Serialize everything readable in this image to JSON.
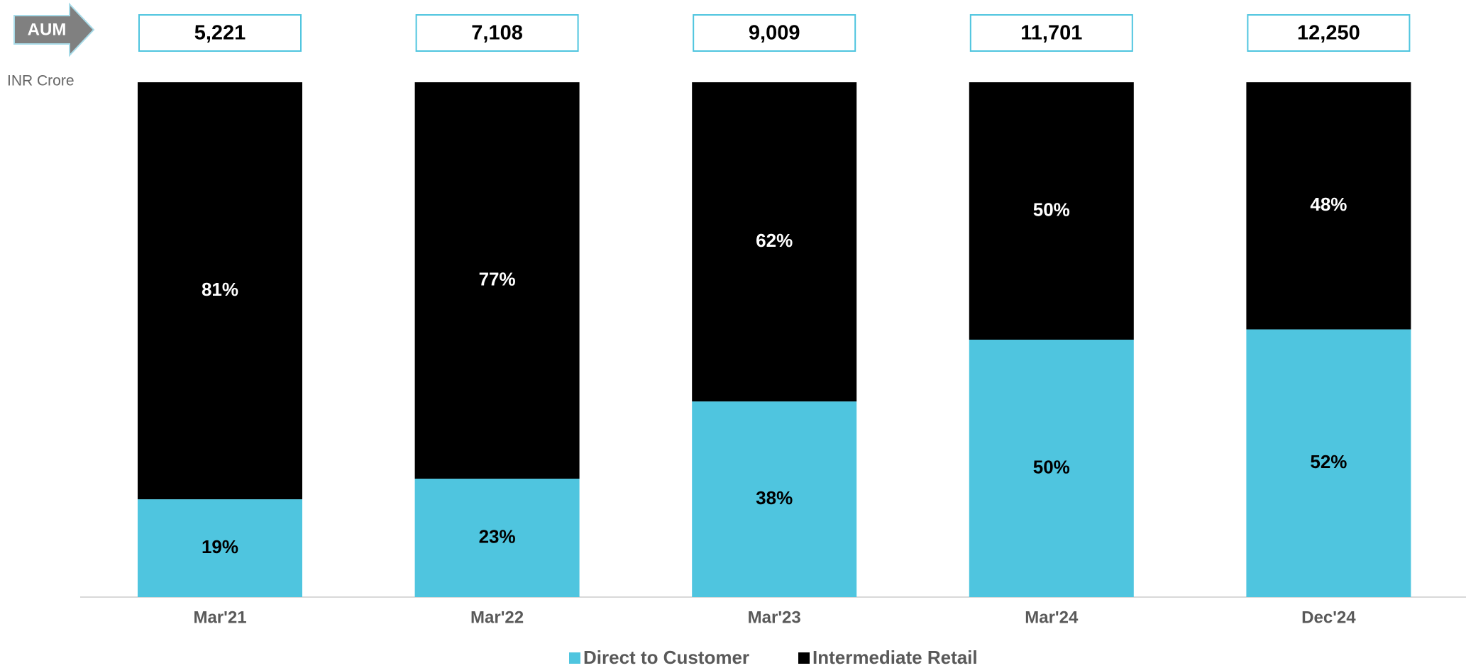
{
  "chart_data": {
    "type": "stacked_bar",
    "unit_label": "INR Crore",
    "categories": [
      "Mar'21",
      "Mar'22",
      "Mar'23",
      "Mar'24",
      "Dec'24"
    ],
    "series": [
      {
        "name": "Direct to Customer",
        "color": "#4fc5df",
        "values": [
          19,
          23,
          38,
          50,
          52
        ],
        "value_labels": [
          "19%",
          "23%",
          "38%",
          "50%",
          "52%"
        ]
      },
      {
        "name": "Intermediate Retail",
        "color": "#000000",
        "values": [
          81,
          77,
          62,
          50,
          48
        ],
        "value_labels": [
          "81%",
          "77%",
          "62%",
          "50%",
          "48%"
        ]
      }
    ],
    "ylim": [
      0,
      100
    ],
    "aum": {
      "label": "AUM",
      "values": [
        5221,
        7108,
        9009,
        11701,
        12250
      ],
      "value_labels": [
        "5,221",
        "7,108",
        "9,009",
        "11,701",
        "12,250"
      ]
    },
    "legend": "bottom"
  }
}
